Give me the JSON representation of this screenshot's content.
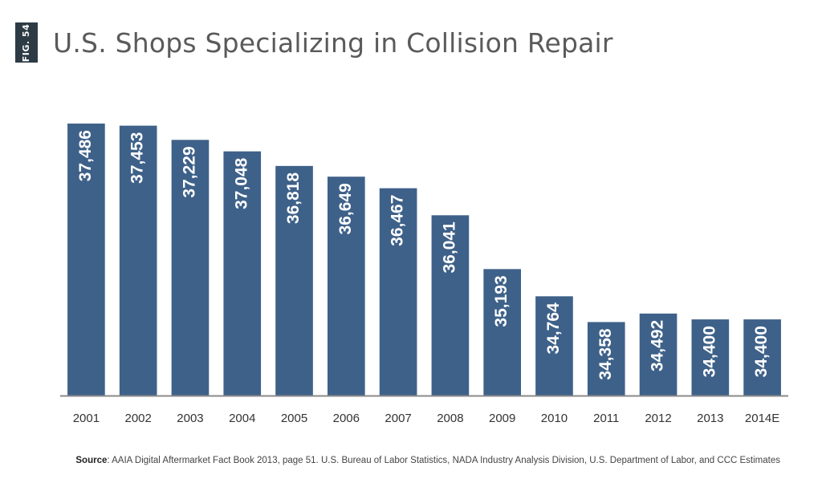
{
  "figure_tag": "FIG. 54",
  "chart_data": {
    "type": "bar",
    "title": "U.S. Shops Specializing in Collision Repair",
    "categories": [
      "2001",
      "2002",
      "2003",
      "2004",
      "2005",
      "2006",
      "2007",
      "2008",
      "2009",
      "2010",
      "2011",
      "2012",
      "2013",
      "2014E"
    ],
    "values": [
      37486,
      37453,
      37229,
      37048,
      36818,
      36649,
      36467,
      36041,
      35193,
      34764,
      34358,
      34492,
      34400,
      34400
    ],
    "value_labels": [
      "37,486",
      "37,453",
      "37,229",
      "37,048",
      "36,818",
      "36,649",
      "36,467",
      "36,041",
      "35,193",
      "34,764",
      "34,358",
      "34,492",
      "34,400",
      "34,400"
    ],
    "xlabel": "",
    "ylabel": "",
    "ylim": [
      33200,
      37600
    ],
    "grid": false,
    "bar_color": "#3e6189"
  },
  "source": {
    "label": "Source",
    "text": ":  AAIA Digital Aftermarket Fact Book 2013, page 51. U.S. Bureau of Labor Statistics, NADA Industry Analysis Division, U.S. Department of Labor, and CCC Estimates"
  }
}
